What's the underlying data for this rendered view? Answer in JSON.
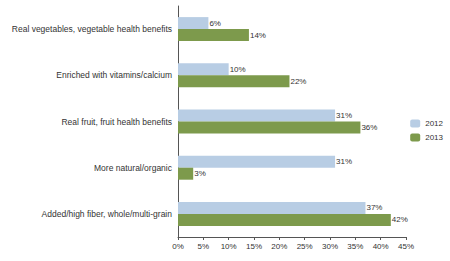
{
  "chart_data": {
    "type": "bar",
    "orientation": "horizontal",
    "categories": [
      "Real vegetables, vegetable health benefits",
      "Enriched with vitamins/calcium",
      "Real fruit, fruit health benefits",
      "More natural/organic",
      "Added/high fiber, whole/multi-grain"
    ],
    "series": [
      {
        "name": "2012",
        "color": "#b8cde4",
        "values": [
          6,
          10,
          31,
          31,
          37
        ],
        "value_labels": [
          "6%",
          "10%",
          "31%",
          "31%",
          "37%"
        ]
      },
      {
        "name": "2013",
        "color": "#7d9a4c",
        "values": [
          14,
          22,
          36,
          3,
          42
        ],
        "value_labels": [
          "14%",
          "22%",
          "36%",
          "3%",
          "42%"
        ]
      }
    ],
    "xlim": [
      0,
      45
    ],
    "xticks": [
      {
        "value": 0,
        "label": "0%"
      },
      {
        "value": 5,
        "label": "5%"
      },
      {
        "value": 10,
        "label": "10%"
      },
      {
        "value": 15,
        "label": "15%"
      },
      {
        "value": 20,
        "label": "20%"
      },
      {
        "value": 25,
        "label": "25%"
      },
      {
        "value": 30,
        "label": "30%"
      },
      {
        "value": 35,
        "label": "35%"
      },
      {
        "value": 40,
        "label": "40%"
      },
      {
        "value": 45,
        "label": "45%"
      }
    ],
    "grid": false,
    "legend": "right",
    "data_labels": true
  }
}
